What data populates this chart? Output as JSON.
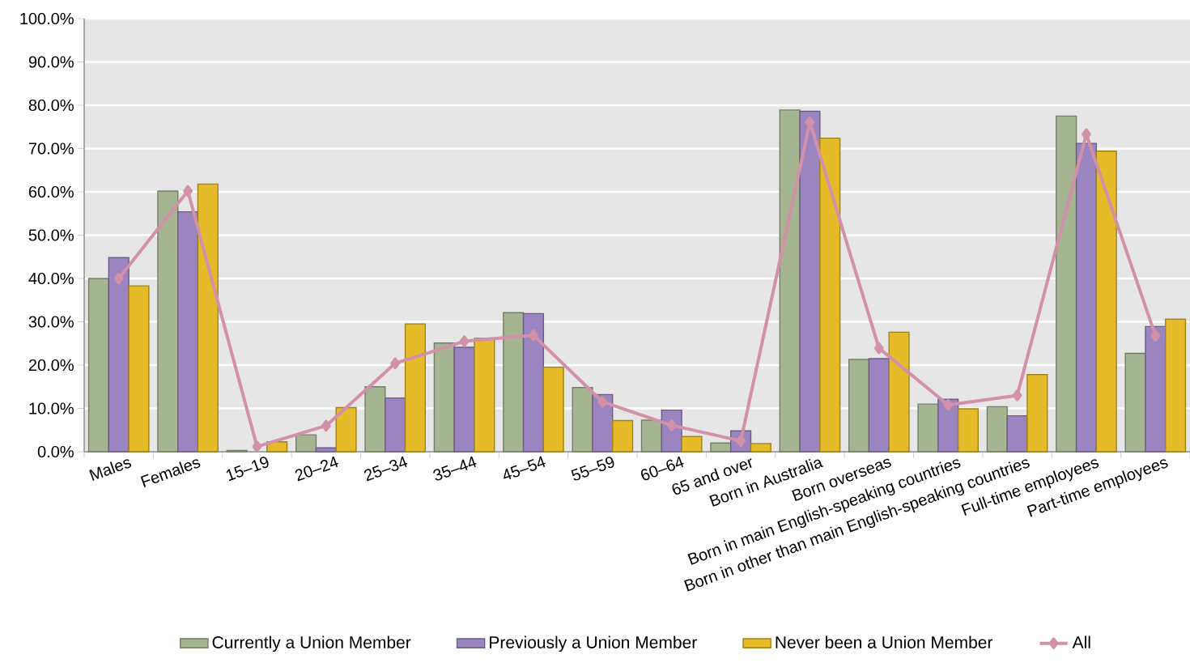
{
  "chart_data": {
    "type": "bar",
    "categories": [
      "Males",
      "Females",
      "15–19",
      "20–24",
      "25–34",
      "35–44",
      "45–54",
      "55–59",
      "60–64",
      "65 and over",
      "Born in Australia",
      "Born overseas",
      "Born in main English-speaking countries",
      "Born in other than main English-speaking countries",
      "Full-time employees",
      "Part-time employees"
    ],
    "series": [
      {
        "name": "Currently a Union Member",
        "color": "#a5b592",
        "values": [
          40.0,
          60.2,
          0.3,
          3.9,
          15.0,
          25.1,
          32.1,
          14.8,
          7.3,
          2.0,
          78.9,
          21.3,
          11.0,
          10.4,
          77.5,
          22.7
        ]
      },
      {
        "name": "Previously a Union Member",
        "color": "#9b85c0",
        "values": [
          44.8,
          55.4,
          null,
          0.9,
          12.4,
          24.1,
          31.9,
          13.2,
          9.6,
          4.8,
          78.6,
          21.5,
          12.1,
          8.3,
          71.2,
          28.9
        ]
      },
      {
        "name": "Never been a Union Member",
        "color": "#e5bb2a",
        "values": [
          38.3,
          61.8,
          2.3,
          10.2,
          29.5,
          26.2,
          19.5,
          7.2,
          3.5,
          1.9,
          72.4,
          27.6,
          9.9,
          17.8,
          69.4,
          30.6
        ]
      },
      {
        "name": "All",
        "type": "line",
        "color": "#d291a8",
        "marker": "diamond",
        "values": [
          40.0,
          60.2,
          1.2,
          6.0,
          20.4,
          25.5,
          26.9,
          11.5,
          6.1,
          2.5,
          76.1,
          23.9,
          10.8,
          13.0,
          73.3,
          26.8
        ]
      }
    ],
    "ylim": [
      0,
      100
    ],
    "yticks": [
      {
        "value": 0,
        "label": "0.0%"
      },
      {
        "value": 10,
        "label": "10.0%"
      },
      {
        "value": 20,
        "label": "20.0%"
      },
      {
        "value": 30,
        "label": "30.0%"
      },
      {
        "value": 40,
        "label": "40.0%"
      },
      {
        "value": 50,
        "label": "50.0%"
      },
      {
        "value": 60,
        "label": "60.0%"
      },
      {
        "value": 70,
        "label": "70.0%"
      },
      {
        "value": 80,
        "label": "80.0%"
      },
      {
        "value": 90,
        "label": "90.0%"
      },
      {
        "value": 100,
        "label": "100.0%"
      }
    ],
    "grid": "y",
    "legend": "bottom"
  }
}
